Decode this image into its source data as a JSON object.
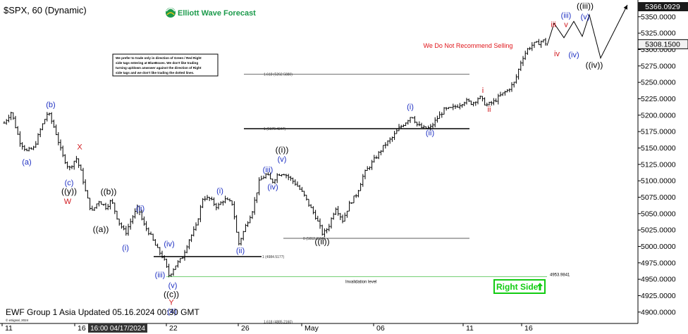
{
  "header": {
    "symbol_title": "$SPX, 60 (Dynamic)",
    "brand": "Elliott Wave Forecast",
    "brand_color": "#1b9a4b",
    "warning": "We Do Not Recommend Selling",
    "warning_color": "#e0151a",
    "disclaimer_lines": [
      "We prefer to trade only in direction of Green / Red Right",
      "side tags entering at BlueBoxes. We don't like trading",
      "turning up/down anwswer against the direction of Right",
      "side tags and we don't like trading the dotted lines."
    ]
  },
  "footer": {
    "updated": "EWF Group 1 Asia Updated 05.16.2024 00:30 GMT",
    "copyright": "© eSignal, 2024",
    "right_side_tag": "Right Side",
    "right_side_arrow": "up-arrow-icon",
    "right_side_color": "#12cc12",
    "invalidation": "Invalidation level"
  },
  "price_axis": {
    "ticks": [
      "5350.0000",
      "5325.0000",
      "5300.0000",
      "5275.0000",
      "5250.0000",
      "5225.0000",
      "5200.0000",
      "5175.0000",
      "5150.0000",
      "5125.0000",
      "5100.0000",
      "5075.0000",
      "5050.0000",
      "5025.0000",
      "5000.0000",
      "4975.0000",
      "4950.0000",
      "4925.0000",
      "4900.0000"
    ],
    "tick_values": [
      5350,
      5325,
      5300,
      5275,
      5250,
      5225,
      5200,
      5175,
      5150,
      5125,
      5100,
      5075,
      5050,
      5025,
      5000,
      4975,
      4950,
      4925,
      4900
    ],
    "top_label": "5366.0929",
    "top_value": 5366.0929,
    "current_label": "5308.1500",
    "current_value": 5308.15,
    "ylim": [
      4888,
      5368
    ]
  },
  "time_axis": {
    "labels": [
      {
        "text": "11",
        "bar": 3
      },
      {
        "text": "16",
        "bar": 106
      },
      {
        "text": "22",
        "bar": 236
      },
      {
        "text": "26",
        "bar": 338
      },
      {
        "text": "May",
        "bar": 428
      },
      {
        "text": "06",
        "bar": 530
      },
      {
        "text": "11",
        "bar": 657
      },
      {
        "text": "16",
        "bar": 740
      }
    ],
    "cursor_label": "16:00 04/17/2024",
    "cursor_bar": 125,
    "bar_range": [
      0,
      905
    ]
  },
  "chart_data": {
    "type": "ohlc",
    "symbol": "$SPX",
    "interval": "60",
    "colors": {
      "bars": "#000000",
      "wave_blue": "#1d2fc2",
      "wave_red": "#d0191f",
      "fib": "#444444",
      "invalidation_line": "#7ed27e"
    },
    "path": [
      [
        6,
        5188
      ],
      [
        16,
        5205
      ],
      [
        28,
        5160
      ],
      [
        38,
        5145
      ],
      [
        48,
        5150
      ],
      [
        58,
        5180
      ],
      [
        68,
        5205
      ],
      [
        78,
        5178
      ],
      [
        88,
        5140
      ],
      [
        98,
        5118
      ],
      [
        108,
        5135
      ],
      [
        116,
        5110
      ],
      [
        122,
        5080
      ],
      [
        130,
        5052
      ],
      [
        140,
        5070
      ],
      [
        150,
        5060
      ],
      [
        158,
        5070
      ],
      [
        168,
        5038
      ],
      [
        178,
        5020
      ],
      [
        188,
        5045
      ],
      [
        196,
        5060
      ],
      [
        203,
        5035
      ],
      [
        212,
        5020
      ],
      [
        222,
        4998
      ],
      [
        232,
        4982
      ],
      [
        240,
        4955
      ],
      [
        248,
        4970
      ],
      [
        258,
        4982
      ],
      [
        268,
        5010
      ],
      [
        278,
        5030
      ],
      [
        288,
        5075
      ],
      [
        298,
        5072
      ],
      [
        308,
        5060
      ],
      [
        318,
        5072
      ],
      [
        330,
        5065
      ],
      [
        338,
        5002
      ],
      [
        348,
        5030
      ],
      [
        358,
        5055
      ],
      [
        368,
        5100
      ],
      [
        378,
        5110
      ],
      [
        386,
        5098
      ],
      [
        394,
        5110
      ],
      [
        402,
        5112
      ],
      [
        410,
        5105
      ],
      [
        420,
        5095
      ],
      [
        430,
        5080
      ],
      [
        440,
        5060
      ],
      [
        448,
        5045
      ],
      [
        458,
        5018
      ],
      [
        466,
        5030
      ],
      [
        476,
        5060
      ],
      [
        486,
        5040
      ],
      [
        496,
        5065
      ],
      [
        506,
        5080
      ],
      [
        516,
        5110
      ],
      [
        526,
        5125
      ],
      [
        536,
        5140
      ],
      [
        546,
        5155
      ],
      [
        556,
        5165
      ],
      [
        566,
        5180
      ],
      [
        576,
        5190
      ],
      [
        584,
        5200
      ],
      [
        592,
        5185
      ],
      [
        600,
        5180
      ],
      [
        610,
        5180
      ],
      [
        620,
        5195
      ],
      [
        630,
        5208
      ],
      [
        640,
        5210
      ],
      [
        650,
        5215
      ],
      [
        660,
        5222
      ],
      [
        670,
        5218
      ],
      [
        680,
        5228
      ],
      [
        690,
        5215
      ],
      [
        700,
        5220
      ],
      [
        710,
        5230
      ],
      [
        720,
        5238
      ],
      [
        730,
        5250
      ],
      [
        740,
        5285
      ],
      [
        748,
        5300
      ],
      [
        756,
        5308
      ],
      [
        764,
        5310
      ],
      [
        770,
        5314
      ],
      [
        776,
        5308
      ]
    ],
    "projection": [
      [
        776,
        5306
      ],
      [
        786,
        5340
      ],
      [
        800,
        5318
      ],
      [
        814,
        5343
      ],
      [
        826,
        5320
      ],
      [
        836,
        5353
      ],
      [
        852,
        5287
      ],
      [
        890,
        5368
      ]
    ],
    "waves": [
      {
        "text": "(a)",
        "bar": 38,
        "price": 5125,
        "color": "blue"
      },
      {
        "text": "(b)",
        "bar": 72,
        "price": 5212,
        "color": "blue"
      },
      {
        "text": "X",
        "bar": 113,
        "price": 5148,
        "color": "red"
      },
      {
        "text": "(c)",
        "bar": 98,
        "price": 5093,
        "color": "blue"
      },
      {
        "text": "((y))",
        "bar": 98,
        "price": 5080,
        "color": "black"
      },
      {
        "text": "W",
        "bar": 96,
        "price": 5065,
        "color": "red"
      },
      {
        "text": "((b))",
        "bar": 154,
        "price": 5079,
        "color": "black"
      },
      {
        "text": "((a))",
        "bar": 143,
        "price": 5022,
        "color": "black"
      },
      {
        "text": "(ii)",
        "bar": 199,
        "price": 5054,
        "color": "blue"
      },
      {
        "text": "(i)",
        "bar": 178,
        "price": 4994,
        "color": "blue"
      },
      {
        "text": "(iv)",
        "bar": 240,
        "price": 5000,
        "color": "blue"
      },
      {
        "text": "(iii)",
        "bar": 227,
        "price": 4953,
        "color": "blue"
      },
      {
        "text": "(v)",
        "bar": 245,
        "price": 4937,
        "color": "blue"
      },
      {
        "text": "((c))",
        "bar": 243,
        "price": 4923,
        "color": "black"
      },
      {
        "text": "Y",
        "bar": 243,
        "price": 4911,
        "color": "red"
      },
      {
        "text": "(4)",
        "bar": 244,
        "price": 4897,
        "color": "blue"
      },
      {
        "text": "(i)",
        "bar": 312,
        "price": 5081,
        "color": "blue"
      },
      {
        "text": "(ii)",
        "bar": 341,
        "price": 4990,
        "color": "blue"
      },
      {
        "text": "(iii)",
        "bar": 380,
        "price": 5113,
        "color": "blue"
      },
      {
        "text": "(iv)",
        "bar": 387,
        "price": 5087,
        "color": "blue"
      },
      {
        "text": "(v)",
        "bar": 400,
        "price": 5129,
        "color": "blue"
      },
      {
        "text": "((i))",
        "bar": 400,
        "price": 5143,
        "color": "black"
      },
      {
        "text": "((ii))",
        "bar": 457,
        "price": 5003,
        "color": "black"
      },
      {
        "text": "(i)",
        "bar": 582,
        "price": 5209,
        "color": "blue"
      },
      {
        "text": "(ii)",
        "bar": 610,
        "price": 5169,
        "color": "blue"
      },
      {
        "text": "i",
        "bar": 685,
        "price": 5234,
        "color": "red"
      },
      {
        "text": "ii",
        "bar": 694,
        "price": 5205,
        "color": "red"
      },
      {
        "text": "iii",
        "bar": 785,
        "price": 5334,
        "color": "red"
      },
      {
        "text": "iv",
        "bar": 790,
        "price": 5290,
        "color": "red"
      },
      {
        "text": "v",
        "bar": 803,
        "price": 5334,
        "color": "red"
      },
      {
        "text": "(iii)",
        "bar": 803,
        "price": 5348,
        "color": "blue"
      },
      {
        "text": "(iv)",
        "bar": 814,
        "price": 5288,
        "color": "blue"
      },
      {
        "text": "(v)",
        "bar": 830,
        "price": 5346,
        "color": "blue"
      },
      {
        "text": "((iii))",
        "bar": 830,
        "price": 5362,
        "color": "black"
      },
      {
        "text": "((iv))",
        "bar": 843,
        "price": 5272,
        "color": "black"
      }
    ],
    "fib_levels": [
      {
        "label": "1.618 (5262.5880)",
        "price": 5262.588,
        "bar_start": 346,
        "bar_end": 666,
        "bold": false
      },
      {
        "label": "1 (5179.4347)",
        "price": 5179.4347,
        "bar_start": 346,
        "bar_end": 666,
        "bold": true
      },
      {
        "label": "0 (5012.3698)",
        "price": 5012.3698,
        "bar_start": 402,
        "bar_end": 666,
        "bold": false
      },
      {
        "label": "1 (4984.5177)",
        "price": 4984.5177,
        "bar_start": 218,
        "bar_end": 371,
        "bold": true
      },
      {
        "label": "1.618 (4885.2160)",
        "price": 4885.216,
        "bar_start": 346,
        "bar_end": 346,
        "bold": false
      }
    ],
    "invalidation": {
      "price": 4953.9841,
      "label": "4953.9841",
      "bar_start": 236,
      "bar_end": 776
    }
  }
}
